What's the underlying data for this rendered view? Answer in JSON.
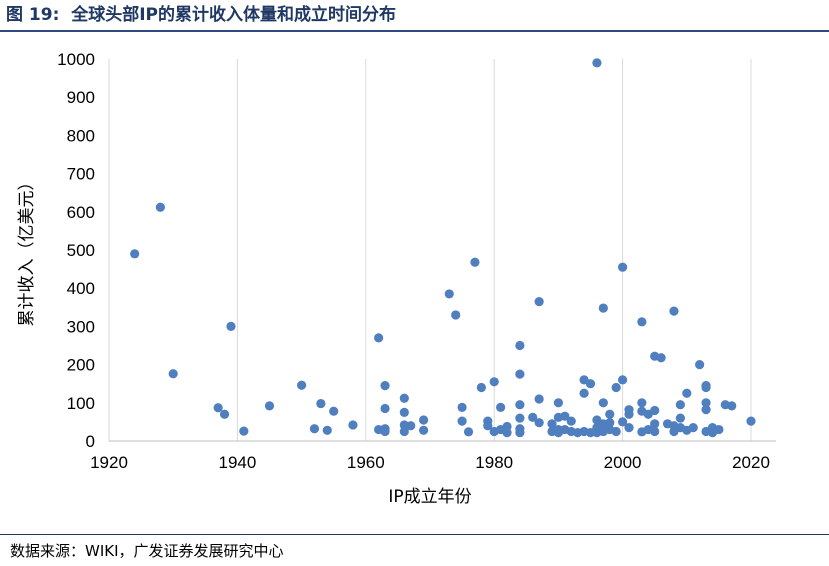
{
  "figure": {
    "number_label": "图 19:",
    "title": "全球头部IP的累计收入体量和成立时间分布"
  },
  "source_note": "数据来源：WIKI，广发证券发展研究中心",
  "chart_data": {
    "type": "scatter",
    "title": "",
    "xlabel": "IP成立年份",
    "ylabel": "累计收入（亿美元）",
    "xlim": [
      1920,
      2020
    ],
    "ylim": [
      0,
      1000
    ],
    "x_ticks": [
      1920,
      1940,
      1960,
      1980,
      2000,
      2020
    ],
    "y_ticks": [
      0,
      100,
      200,
      300,
      400,
      500,
      600,
      700,
      800,
      900,
      1000
    ],
    "grid": "vertical",
    "legend": "none",
    "marker_color": "#4f7fbf",
    "points": [
      {
        "x": 1924,
        "y": 490
      },
      {
        "x": 1928,
        "y": 612
      },
      {
        "x": 1930,
        "y": 176
      },
      {
        "x": 1937,
        "y": 87
      },
      {
        "x": 1938,
        "y": 70
      },
      {
        "x": 1939,
        "y": 300
      },
      {
        "x": 1941,
        "y": 26
      },
      {
        "x": 1945,
        "y": 92
      },
      {
        "x": 1950,
        "y": 146
      },
      {
        "x": 1952,
        "y": 32
      },
      {
        "x": 1953,
        "y": 98
      },
      {
        "x": 1954,
        "y": 28
      },
      {
        "x": 1955,
        "y": 78
      },
      {
        "x": 1958,
        "y": 42
      },
      {
        "x": 1962,
        "y": 270
      },
      {
        "x": 1962,
        "y": 30
      },
      {
        "x": 1963,
        "y": 145
      },
      {
        "x": 1963,
        "y": 85
      },
      {
        "x": 1963,
        "y": 32
      },
      {
        "x": 1963,
        "y": 25
      },
      {
        "x": 1966,
        "y": 112
      },
      {
        "x": 1966,
        "y": 75
      },
      {
        "x": 1966,
        "y": 42
      },
      {
        "x": 1966,
        "y": 25
      },
      {
        "x": 1967,
        "y": 40
      },
      {
        "x": 1969,
        "y": 55
      },
      {
        "x": 1969,
        "y": 28
      },
      {
        "x": 1973,
        "y": 385
      },
      {
        "x": 1974,
        "y": 330
      },
      {
        "x": 1975,
        "y": 88
      },
      {
        "x": 1975,
        "y": 52
      },
      {
        "x": 1976,
        "y": 24
      },
      {
        "x": 1977,
        "y": 468
      },
      {
        "x": 1978,
        "y": 140
      },
      {
        "x": 1979,
        "y": 52
      },
      {
        "x": 1979,
        "y": 40
      },
      {
        "x": 1980,
        "y": 155
      },
      {
        "x": 1980,
        "y": 25
      },
      {
        "x": 1981,
        "y": 88
      },
      {
        "x": 1981,
        "y": 30
      },
      {
        "x": 1982,
        "y": 38
      },
      {
        "x": 1982,
        "y": 22
      },
      {
        "x": 1984,
        "y": 250
      },
      {
        "x": 1984,
        "y": 175
      },
      {
        "x": 1984,
        "y": 95
      },
      {
        "x": 1984,
        "y": 60
      },
      {
        "x": 1984,
        "y": 32
      },
      {
        "x": 1984,
        "y": 22
      },
      {
        "x": 1986,
        "y": 62
      },
      {
        "x": 1987,
        "y": 365
      },
      {
        "x": 1987,
        "y": 110
      },
      {
        "x": 1987,
        "y": 48
      },
      {
        "x": 1989,
        "y": 45
      },
      {
        "x": 1989,
        "y": 25
      },
      {
        "x": 1990,
        "y": 100
      },
      {
        "x": 1990,
        "y": 62
      },
      {
        "x": 1990,
        "y": 30
      },
      {
        "x": 1990,
        "y": 22
      },
      {
        "x": 1991,
        "y": 65
      },
      {
        "x": 1991,
        "y": 30
      },
      {
        "x": 1992,
        "y": 52
      },
      {
        "x": 1992,
        "y": 25
      },
      {
        "x": 1993,
        "y": 22
      },
      {
        "x": 1994,
        "y": 160
      },
      {
        "x": 1994,
        "y": 125
      },
      {
        "x": 1994,
        "y": 25
      },
      {
        "x": 1995,
        "y": 150
      },
      {
        "x": 1995,
        "y": 22
      },
      {
        "x": 1996,
        "y": 990
      },
      {
        "x": 1996,
        "y": 55
      },
      {
        "x": 1996,
        "y": 35
      },
      {
        "x": 1996,
        "y": 22
      },
      {
        "x": 1997,
        "y": 348
      },
      {
        "x": 1997,
        "y": 100
      },
      {
        "x": 1997,
        "y": 45
      },
      {
        "x": 1997,
        "y": 25
      },
      {
        "x": 1998,
        "y": 70
      },
      {
        "x": 1998,
        "y": 48
      },
      {
        "x": 1998,
        "y": 30
      },
      {
        "x": 1999,
        "y": 140
      },
      {
        "x": 1999,
        "y": 25
      },
      {
        "x": 2000,
        "y": 455
      },
      {
        "x": 2000,
        "y": 160
      },
      {
        "x": 2000,
        "y": 50
      },
      {
        "x": 2001,
        "y": 82
      },
      {
        "x": 2001,
        "y": 70
      },
      {
        "x": 2001,
        "y": 35
      },
      {
        "x": 2003,
        "y": 312
      },
      {
        "x": 2003,
        "y": 100
      },
      {
        "x": 2003,
        "y": 78
      },
      {
        "x": 2003,
        "y": 24
      },
      {
        "x": 2004,
        "y": 70
      },
      {
        "x": 2004,
        "y": 30
      },
      {
        "x": 2005,
        "y": 222
      },
      {
        "x": 2005,
        "y": 80
      },
      {
        "x": 2005,
        "y": 45
      },
      {
        "x": 2005,
        "y": 25
      },
      {
        "x": 2006,
        "y": 218
      },
      {
        "x": 2007,
        "y": 45
      },
      {
        "x": 2008,
        "y": 340
      },
      {
        "x": 2008,
        "y": 40
      },
      {
        "x": 2008,
        "y": 25
      },
      {
        "x": 2009,
        "y": 95
      },
      {
        "x": 2009,
        "y": 60
      },
      {
        "x": 2009,
        "y": 35
      },
      {
        "x": 2010,
        "y": 125
      },
      {
        "x": 2010,
        "y": 28
      },
      {
        "x": 2011,
        "y": 35
      },
      {
        "x": 2012,
        "y": 200
      },
      {
        "x": 2013,
        "y": 145
      },
      {
        "x": 2013,
        "y": 140
      },
      {
        "x": 2013,
        "y": 100
      },
      {
        "x": 2013,
        "y": 82
      },
      {
        "x": 2013,
        "y": 25
      },
      {
        "x": 2014,
        "y": 35
      },
      {
        "x": 2014,
        "y": 22
      },
      {
        "x": 2015,
        "y": 30
      },
      {
        "x": 2016,
        "y": 95
      },
      {
        "x": 2017,
        "y": 92
      },
      {
        "x": 2020,
        "y": 52
      }
    ]
  }
}
